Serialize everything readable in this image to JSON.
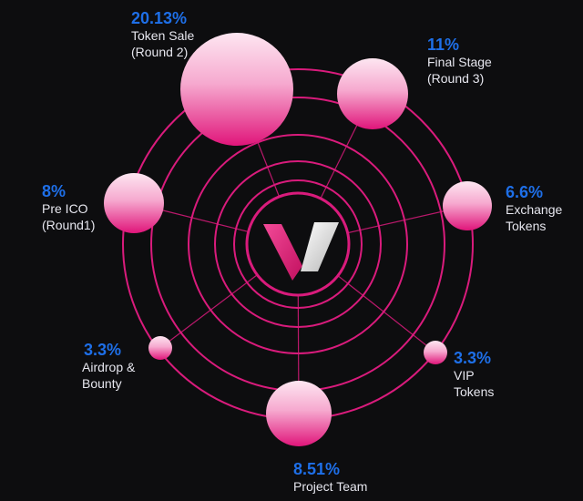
{
  "chart_data": {
    "type": "radial-bubble",
    "center_logo": "V",
    "segments": [
      {
        "pct": "20.13%",
        "label": "Token Sale\n(Round 2)",
        "value": 20.13
      },
      {
        "pct": "11%",
        "label": "Final Stage\n(Round 3)",
        "value": 11
      },
      {
        "pct": "6.6%",
        "label": "Exchange\nTokens",
        "value": 6.6
      },
      {
        "pct": "3.3%",
        "label": "VIP\nTokens",
        "value": 3.3
      },
      {
        "pct": "8.51%",
        "label": "Project Team",
        "value": 8.51
      },
      {
        "pct": "3.3%",
        "label": "Airdrop &\nBounty",
        "value": 3.3
      },
      {
        "pct": "8%",
        "label": "Pre ICO\n(Round1)",
        "value": 8
      }
    ]
  },
  "colors": {
    "background": "#0d0d0f",
    "ring": "#d91b7c",
    "bubble_top": "#fde6f1",
    "bubble_bottom": "#e0157a",
    "percent_text": "#1e6fe8",
    "label_text": "#e6e6ee"
  }
}
